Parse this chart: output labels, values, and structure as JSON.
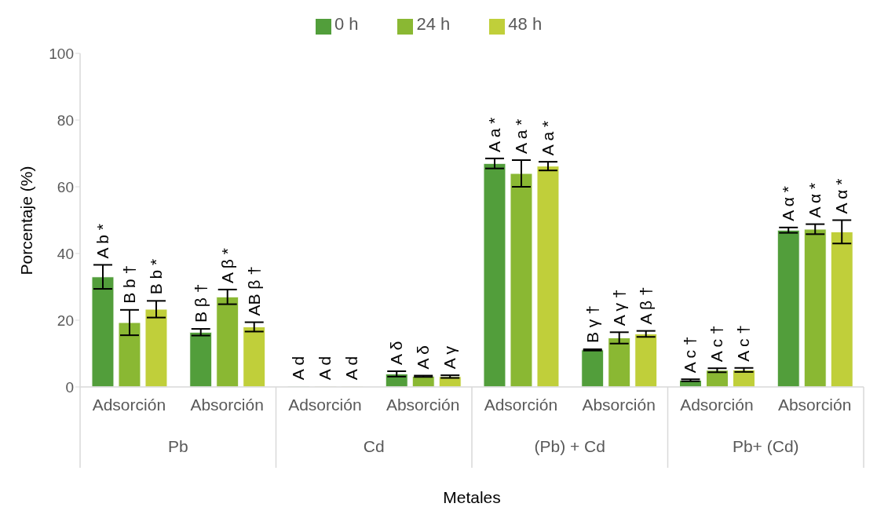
{
  "chart_data": {
    "type": "bar",
    "xlabel": "Metales",
    "ylabel": "Porcentaje (%)",
    "categories": [
      "Adsorción",
      "Absorción",
      "Adsorción",
      "Absorción",
      "Adsorción",
      "Absorción",
      "Adsorción",
      "Absorción"
    ],
    "annotations": [
      "Pb",
      "Cd",
      "(Pb) + Cd",
      "Pb+ (Cd)"
    ],
    "series": [
      {
        "name": "0 h",
        "color": "#529e3b",
        "values": [
          33,
          16.4,
          0.2,
          3.9,
          67,
          11.1,
          2,
          47
        ],
        "errors": [
          3.6,
          1,
          null,
          0.8,
          1.5,
          0.2,
          0.3,
          0.8
        ],
        "value_labels": [
          "A b *",
          "B β †",
          "A d",
          "A δ",
          "A a *",
          "B γ †",
          "A c †",
          "A α *"
        ]
      },
      {
        "name": "24 h",
        "color": "#8ab833",
        "values": [
          19.3,
          27,
          0.2,
          3.2,
          64,
          14.7,
          5,
          47.3
        ],
        "errors": [
          3.8,
          2.2,
          null,
          0.2,
          4,
          1.7,
          0.6,
          1.5
        ],
        "value_labels": [
          "B b †",
          "A β *",
          "A d",
          "A δ",
          "A a *",
          "A γ †",
          "A c †",
          "A α *"
        ]
      },
      {
        "name": "48 h",
        "color": "#c0cf3a",
        "values": [
          23.3,
          18,
          0.2,
          3.1,
          66.2,
          15.9,
          5.1,
          46.5
        ],
        "errors": [
          2.5,
          1.4,
          null,
          0.4,
          1.3,
          0.9,
          0.6,
          3.5
        ],
        "value_labels": [
          "B b *",
          "AB β †",
          "A d",
          "A γ",
          "A a *",
          "A β †",
          "A c †",
          "A α *"
        ]
      }
    ],
    "ylim": [
      0,
      100
    ],
    "yticks": [
      0,
      20,
      40,
      60,
      80,
      100
    ],
    "legend": "top",
    "grid": false
  }
}
